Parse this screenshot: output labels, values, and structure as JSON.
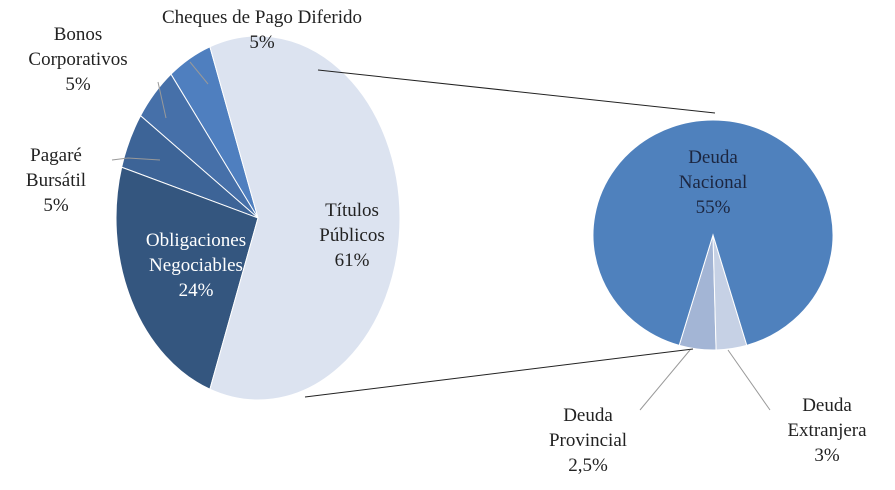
{
  "chart_data": {
    "type": "pie_of_pie",
    "categories": [
      "Títulos Públicos",
      "Obligaciones Negociables",
      "Pagaré Bursátil",
      "Bonos Corporativos",
      "Cheques de Pago Diferido"
    ],
    "values": [
      61,
      24,
      5,
      5,
      5
    ],
    "value_labels": [
      "61%",
      "24%",
      "5%",
      "5%",
      "5%"
    ],
    "colors": [
      "#dce3f0",
      "#34567f",
      "#3d6497",
      "#4670a9",
      "#4f7fbf"
    ],
    "secondary": {
      "categories": [
        "Deuda Nacional",
        "Deuda Provincial",
        "Deuda Extranjera"
      ],
      "values": [
        55,
        2.5,
        3
      ],
      "value_labels": [
        "55%",
        "2,5%",
        "3%"
      ],
      "colors": [
        "#4f81bd",
        "#c6d1e5",
        "#a3b5d5"
      ]
    }
  }
}
